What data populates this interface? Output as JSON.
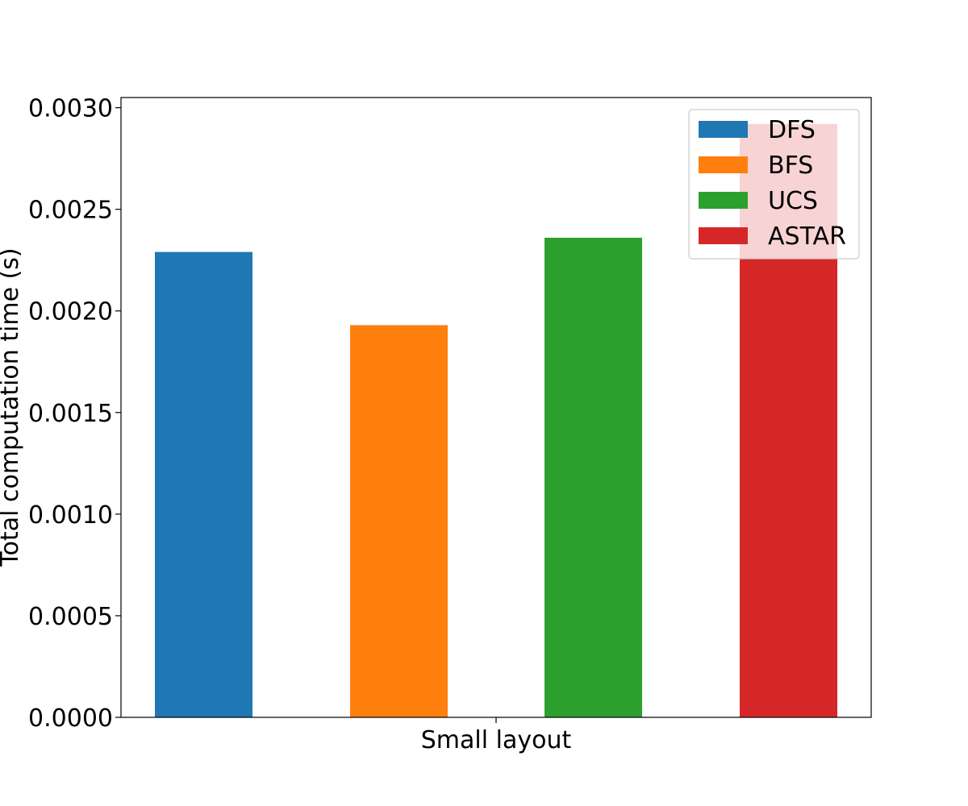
{
  "chart_data": {
    "type": "bar",
    "title": "",
    "xlabel": "Small layout",
    "ylabel": "Total computation time (s)",
    "ylim": [
      0,
      0.00305
    ],
    "yticks": [
      "0.0000",
      "0.0005",
      "0.0010",
      "0.0015",
      "0.0020",
      "0.0025",
      "0.0030"
    ],
    "ytick_values": [
      0,
      0.0005,
      0.001,
      0.0015,
      0.002,
      0.0025,
      0.003
    ],
    "grid": false,
    "legend_position": "top-right",
    "series": [
      {
        "name": "DFS",
        "value": 0.00229,
        "color": "#1f77b4"
      },
      {
        "name": "BFS",
        "value": 0.00193,
        "color": "#ff7f0e"
      },
      {
        "name": "UCS",
        "value": 0.00236,
        "color": "#2ca02c"
      },
      {
        "name": "ASTAR",
        "value": 0.00292,
        "color": "#d62728"
      }
    ]
  }
}
